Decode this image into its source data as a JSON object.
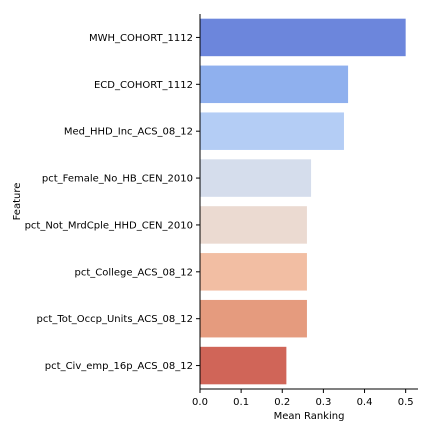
{
  "chart_data": {
    "type": "bar",
    "orientation": "horizontal",
    "title": "",
    "xlabel": "Mean Ranking",
    "ylabel": "Feature",
    "xlim": [
      0,
      0.53
    ],
    "xticks": [
      0.0,
      0.1,
      0.2,
      0.3,
      0.4,
      0.5
    ],
    "xtick_labels": [
      "0.0",
      "0.1",
      "0.2",
      "0.3",
      "0.4",
      "0.5"
    ],
    "categories": [
      "MWH_COHORT_1112",
      "ECD_COHORT_1112",
      "Med_HHD_Inc_ACS_08_12",
      "pct_Female_No_HB_CEN_2010",
      "pct_Not_MrdCple_HHD_CEN_2010",
      "pct_College_ACS_08_12",
      "pct_Tot_Occp_Units_ACS_08_12",
      "pct_Civ_emp_16p_ACS_08_12"
    ],
    "values": [
      0.5,
      0.36,
      0.35,
      0.27,
      0.26,
      0.26,
      0.26,
      0.21
    ],
    "colors": [
      "#6c86dc",
      "#8fb0ee",
      "#b4cdf5",
      "#d5ddec",
      "#ebdad1",
      "#f2bea3",
      "#e59b7e",
      "#d06558"
    ],
    "grid": false,
    "spines": [
      "left",
      "bottom"
    ]
  }
}
